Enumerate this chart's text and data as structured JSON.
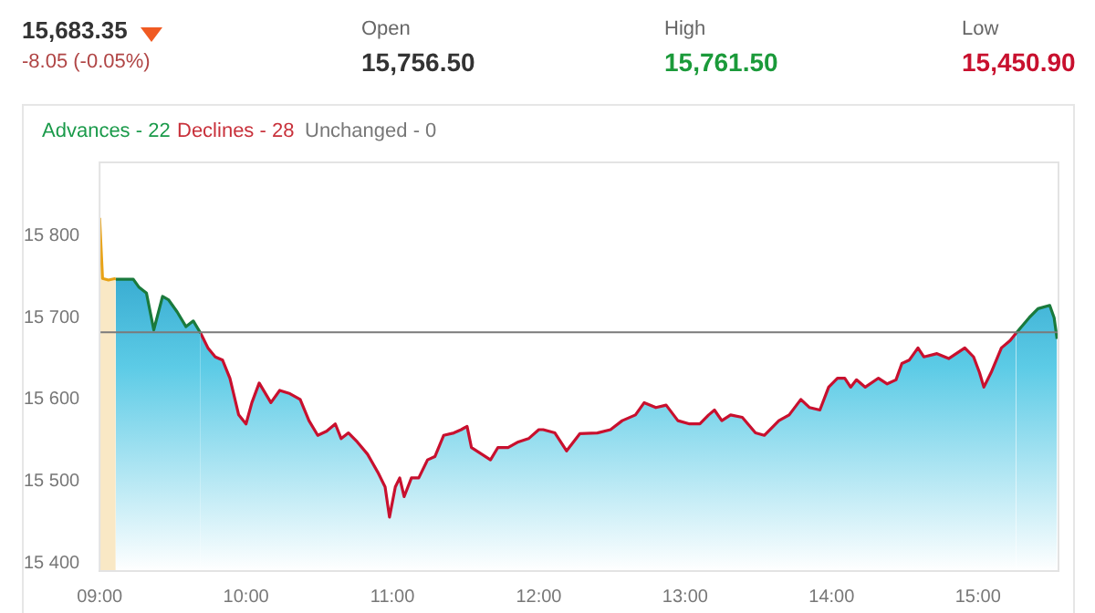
{
  "chart_data": {
    "type": "area",
    "annotations": [
      "15,683.35",
      "-8.05 (-0.05%)",
      "Open",
      "15,756.50",
      "High",
      "15,761.50",
      "Low",
      "15,450.90",
      "Advances - 22",
      "Declines - 28",
      "Unchanged - 0"
    ],
    "xlim": [
      9,
      15.55
    ],
    "xticks": [
      {
        "value": 9,
        "label": "09:00"
      },
      {
        "value": 10,
        "label": "10:00"
      },
      {
        "value": 11,
        "label": "11:00"
      },
      {
        "value": 12,
        "label": "12:00"
      },
      {
        "value": 13,
        "label": "13:00"
      },
      {
        "value": 14,
        "label": "14:00"
      },
      {
        "value": 15,
        "label": "15:00"
      }
    ],
    "ylim": [
      15390,
      15890
    ],
    "yticks": [
      {
        "value": 15400,
        "label": "15 400"
      },
      {
        "value": 15500,
        "label": "15 500"
      },
      {
        "value": 15600,
        "label": "15 600"
      },
      {
        "value": 15700,
        "label": "15 700"
      },
      {
        "value": 15800,
        "label": "15 800"
      }
    ],
    "ref_lines": [
      {
        "axis": "y",
        "value": 15682,
        "color": "#7a7a7a"
      }
    ],
    "series": [
      {
        "color": "#e8a317",
        "x": [
          9,
          9.02,
          9.06,
          9.11
        ],
        "values": [
          15822,
          15748,
          15746,
          15748
        ]
      },
      {
        "color": "#1a7a3c",
        "x": [
          9.11,
          9.23,
          9.27,
          9.32,
          9.37,
          9.43,
          9.47,
          9.53,
          9.59,
          9.64,
          9.69
        ],
        "values": [
          15747,
          15747,
          15737,
          15730,
          15685,
          15726,
          15722,
          15707,
          15689,
          15696,
          15681
        ]
      },
      {
        "color": "#c8102e",
        "x": [
          9.69,
          9.74,
          9.79,
          9.84,
          9.89,
          9.95,
          10.0,
          10.04,
          10.09,
          10.17,
          10.23,
          10.3,
          10.37,
          10.43,
          10.49,
          10.55,
          10.61,
          10.65,
          10.7,
          10.76,
          10.83,
          10.9,
          10.95,
          10.98,
          11.02,
          11.05,
          11.08,
          11.13,
          11.18,
          11.24,
          11.29,
          11.35,
          11.42,
          11.47,
          11.51,
          11.54,
          11.61,
          11.67,
          11.72,
          11.79,
          11.86,
          11.93,
          12.0,
          12.03,
          12.11,
          12.19,
          12.28,
          12.4,
          12.49,
          12.57,
          12.66,
          12.72,
          12.8,
          12.87,
          12.95,
          13.03,
          13.1,
          13.16,
          13.2,
          13.25,
          13.31,
          13.39,
          13.48,
          13.54,
          13.64,
          13.71,
          13.79,
          13.85,
          13.92,
          13.98,
          14.04,
          14.09,
          14.13,
          14.17,
          14.23,
          14.32,
          14.38,
          14.44,
          14.48,
          14.53,
          14.59,
          14.63,
          14.72,
          14.8,
          14.91,
          14.97,
          15.01,
          15.04,
          15.09,
          15.16,
          15.22,
          15.26
        ],
        "values": [
          15681,
          15663,
          15652,
          15648,
          15626,
          15581,
          15570,
          15596,
          15620,
          15596,
          15611,
          15607,
          15600,
          15574,
          15556,
          15561,
          15570,
          15552,
          15559,
          15548,
          15533,
          15511,
          15493,
          15456,
          15493,
          15504,
          15481,
          15504,
          15504,
          15526,
          15530,
          15556,
          15559,
          15563,
          15567,
          15541,
          15533,
          15526,
          15541,
          15541,
          15548,
          15552,
          15563,
          15563,
          15559,
          15537,
          15558,
          15559,
          15563,
          15574,
          15581,
          15596,
          15590,
          15593,
          15574,
          15570,
          15570,
          15581,
          15587,
          15574,
          15581,
          15578,
          15559,
          15556,
          15574,
          15581,
          15600,
          15590,
          15587,
          15615,
          15626,
          15626,
          15615,
          15624,
          15615,
          15626,
          15619,
          15624,
          15644,
          15648,
          15663,
          15652,
          15656,
          15650,
          15663,
          15652,
          15633,
          15615,
          15633,
          15663,
          15672,
          15681
        ]
      },
      {
        "color": "#1a7a3c",
        "x": [
          15.26,
          15.35,
          15.41,
          15.49,
          15.52,
          15.54
        ],
        "values": [
          15681,
          15700,
          15711,
          15715,
          15700,
          15674
        ]
      }
    ]
  }
}
